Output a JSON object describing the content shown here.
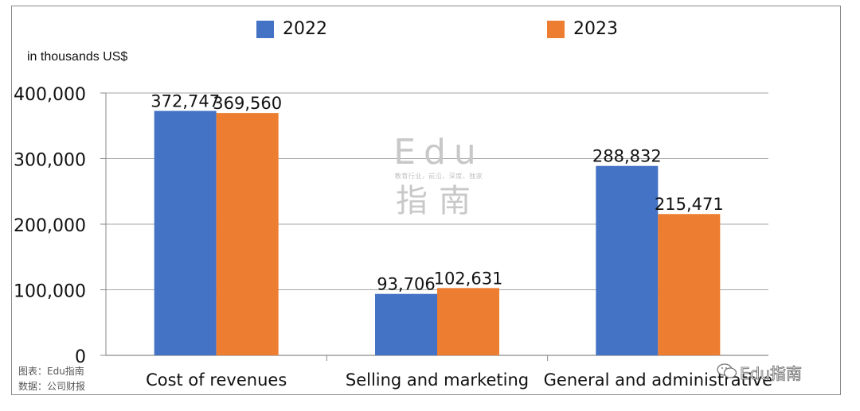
{
  "chart_data": {
    "type": "bar",
    "categories": [
      "Cost of revenues",
      "Selling and marketing",
      "General and administrative"
    ],
    "series": [
      {
        "name": "2022",
        "values": [
          372747,
          93706,
          288832
        ],
        "labels": [
          "372,747",
          "93,706",
          "288,832"
        ]
      },
      {
        "name": "2023",
        "values": [
          369560,
          102631,
          215471
        ],
        "labels": [
          "369,560",
          "102,631",
          "215,471"
        ]
      }
    ],
    "ylabel": "in thousands US$",
    "ylim": [
      0,
      400000
    ],
    "yticks": [
      {
        "value": 0,
        "label": "0"
      },
      {
        "value": 100000,
        "label": "100,000"
      },
      {
        "value": 200000,
        "label": "200,000"
      },
      {
        "value": 300000,
        "label": "300,000"
      },
      {
        "value": 400000,
        "label": "400,000"
      }
    ],
    "grid": true,
    "legend_position": "top",
    "colors": [
      "#4472c4",
      "#ed7d31"
    ]
  },
  "source": {
    "line1": "图表：Edu指南",
    "line2": "数据：公司财报"
  },
  "watermark": {
    "big": "Edu",
    "small": "教育行业，前沿、深度、独家",
    "cn": "指南"
  },
  "brand": "Edu指南"
}
